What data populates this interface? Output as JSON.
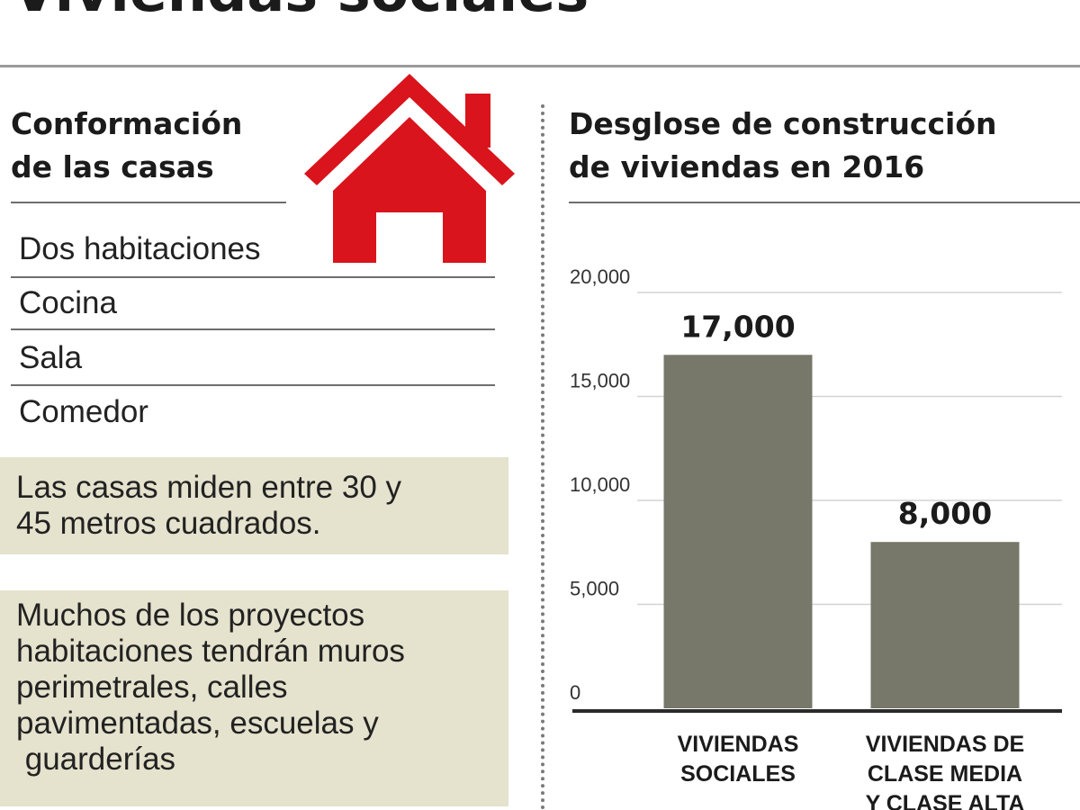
{
  "page": {
    "title": "Viviendas sociales"
  },
  "left": {
    "heading_line1": "Conformación",
    "heading_line2": "de las casas",
    "rooms": [
      "Dos habitaciones",
      "Cocina",
      "Sala",
      "Comedor"
    ],
    "note1_line1": "Las casas miden entre 30 y",
    "note1_line2": "45 metros cuadrados.",
    "note2_lines": [
      "Muchos de los proyectos",
      "habitaciones tendrán muros",
      "perimetrales, calles",
      "pavimentadas, escuelas y",
      " guarderías"
    ]
  },
  "colors": {
    "bar": "#77776a",
    "house": "#d9141c",
    "note_bg": "#e5e2cd",
    "gridline": "#d3d3d3"
  },
  "icons": {
    "house": "house-icon"
  },
  "chart_data": {
    "type": "bar",
    "title_line1": "Desglose de construcción",
    "title_line2": "de viviendas en 2016",
    "categories": [
      [
        "VIVIENDAS",
        "SOCIALES"
      ],
      [
        "VIVIENDAS DE",
        "CLASE MEDIA",
        "Y CLASE ALTA"
      ]
    ],
    "values": [
      17000,
      8000
    ],
    "value_labels": [
      "17,000",
      "8,000"
    ],
    "ylim": [
      0,
      20000
    ],
    "yticks": [
      0,
      5000,
      10000,
      15000,
      20000
    ],
    "ytick_labels": [
      "0",
      "5,000",
      "10,000",
      "15,000",
      "20,000"
    ],
    "grid": true,
    "legend": "none"
  }
}
